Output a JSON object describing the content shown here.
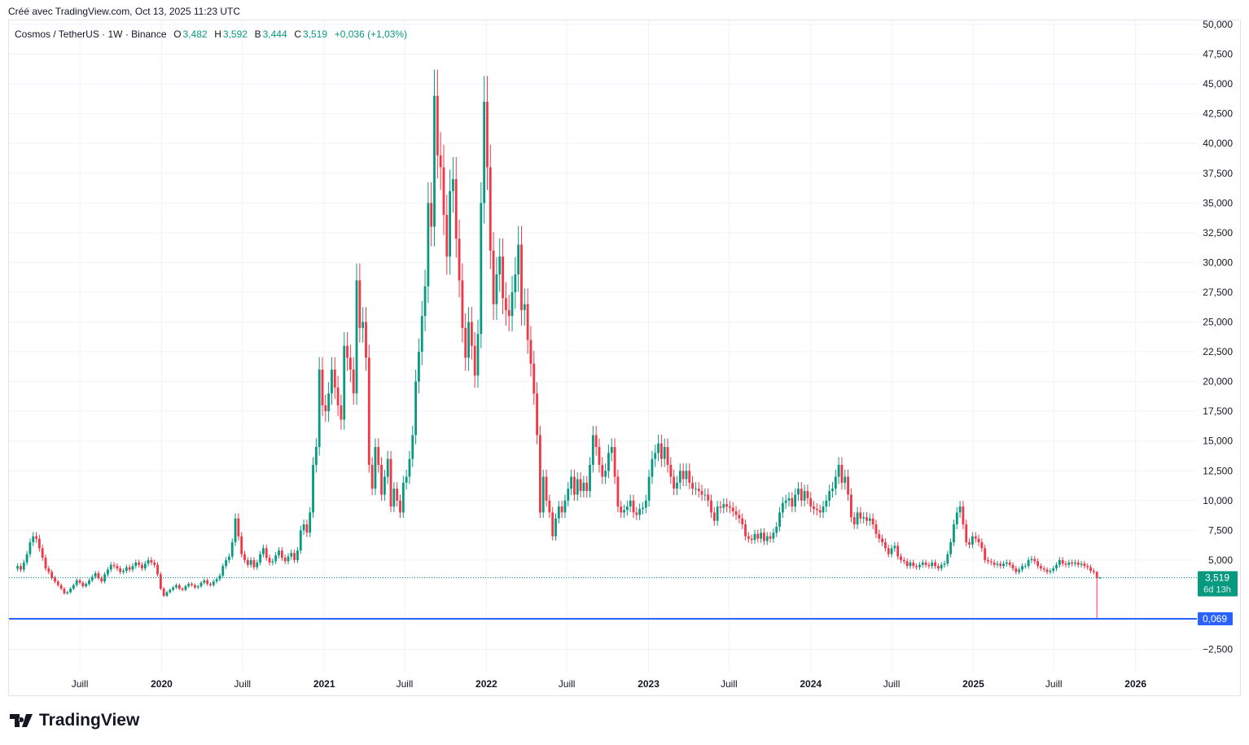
{
  "caption": "Créé avec TradingView.com, Oct 13, 2025 11:23 UTC",
  "legend": {
    "symbol": "Cosmos / TetherUS · 1W · Binance",
    "o_label": "O",
    "o": "3,482",
    "h_label": "H",
    "h": "3,592",
    "l_label": "B",
    "l": "3,444",
    "c_label": "C",
    "c": "3,519",
    "change": "+0,036 (+1,03%)"
  },
  "logo": "TradingView",
  "colors": {
    "up": "#089981",
    "down": "#f23645",
    "line": "#2962ff",
    "grid": "#f0f3fa",
    "text": "#131722"
  },
  "chart_data": {
    "type": "candlestick",
    "interval": "1W",
    "ylim": [
      -3.5,
      50.5
    ],
    "y_ticks": [
      50,
      47.5,
      45,
      42.5,
      40,
      37.5,
      35,
      32.5,
      30,
      27.5,
      25,
      22.5,
      20,
      17.5,
      15,
      12.5,
      10,
      7.5,
      5,
      -2.5
    ],
    "y_tick_labels": [
      "50,000",
      "47,500",
      "45,000",
      "42,500",
      "40,000",
      "37,500",
      "35,000",
      "32,500",
      "30,000",
      "27,500",
      "25,000",
      "22,500",
      "20,000",
      "17,500",
      "15,000",
      "12,500",
      "10,000",
      "7,500",
      "5,000",
      "−2,500"
    ],
    "x_tick_labels": [
      "Juill",
      "2020",
      "Juill",
      "2021",
      "Juill",
      "2022",
      "Juill",
      "2023",
      "Juill",
      "2024",
      "Juill",
      "2025",
      "Juill",
      "2026"
    ],
    "x_tick_dates": [
      "2019-07-01",
      "2020-01-01",
      "2020-07-01",
      "2021-01-01",
      "2021-07-01",
      "2022-01-01",
      "2022-07-01",
      "2023-01-01",
      "2023-07-01",
      "2024-01-01",
      "2024-07-01",
      "2025-01-01",
      "2025-07-01",
      "2026-01-01"
    ],
    "last_candle_date": "2025-10-13",
    "closes": [
      4.5,
      4.2,
      4.8,
      5.5,
      6.5,
      7.0,
      6.8,
      6.0,
      5.2,
      4.3,
      4.0,
      3.5,
      3.2,
      2.9,
      2.6,
      2.2,
      2.3,
      2.6,
      2.9,
      3.3,
      3.1,
      2.8,
      3.0,
      3.3,
      3.6,
      3.9,
      3.5,
      3.2,
      3.8,
      4.2,
      4.6,
      4.5,
      4.3,
      4.0,
      4.1,
      4.4,
      4.2,
      4.5,
      4.8,
      4.6,
      4.3,
      4.7,
      5.0,
      4.8,
      4.6,
      3.8,
      2.6,
      2.0,
      2.3,
      2.5,
      2.7,
      2.9,
      2.6,
      2.5,
      2.8,
      3.0,
      2.9,
      2.7,
      2.8,
      3.1,
      3.3,
      3.0,
      2.9,
      3.2,
      3.4,
      3.7,
      4.5,
      5.0,
      5.3,
      6.5,
      8.5,
      7.0,
      5.5,
      5.0,
      4.6,
      5.0,
      4.4,
      4.8,
      5.5,
      6.0,
      5.2,
      4.8,
      4.9,
      5.4,
      5.8,
      5.2,
      4.9,
      5.3,
      5.6,
      5.0,
      5.8,
      7.5,
      8.0,
      7.3,
      9.0,
      13.0,
      14.5,
      21.0,
      18.0,
      17.5,
      19.0,
      21.0,
      19.5,
      18.0,
      16.8,
      23.0,
      22.0,
      21.0,
      19.0,
      28.5,
      24.5,
      25.0,
      22.0,
      13.0,
      11.0,
      14.5,
      13.0,
      10.5,
      12.0,
      13.5,
      9.5,
      11.0,
      10.0,
      9.0,
      11.5,
      12.0,
      13.5,
      15.5,
      20.0,
      22.5,
      25.5,
      28.0,
      35.0,
      33.0,
      44.0,
      39.0,
      38.0,
      34.0,
      30.5,
      36.0,
      37.0,
      32.0,
      28.5,
      24.5,
      22.0,
      25.0,
      23.0,
      20.5,
      24.0,
      35.0,
      43.5,
      38.0,
      31.0,
      26.5,
      29.0,
      30.5,
      27.0,
      26.0,
      25.5,
      27.5,
      29.0,
      31.5,
      26.0,
      26.5,
      23.5,
      21.5,
      19.0,
      15.5,
      9.0,
      12.0,
      10.0,
      9.0,
      7.0,
      8.5,
      9.5,
      9.0,
      10.0,
      11.0,
      12.0,
      10.5,
      11.8,
      10.8,
      11.5,
      10.8,
      13.0,
      15.5,
      14.5,
      13.0,
      12.0,
      12.5,
      14.0,
      14.5,
      12.0,
      9.5,
      9.0,
      9.2,
      9.5,
      10.0,
      9.0,
      8.8,
      9.3,
      9.4,
      10.0,
      12.0,
      13.5,
      14.0,
      14.8,
      13.5,
      14.5,
      13.0,
      12.0,
      11.0,
      11.5,
      12.5,
      11.8,
      12.5,
      11.5,
      11.0,
      11.0,
      10.8,
      10.5,
      10.5,
      10.0,
      9.0,
      8.3,
      9.5,
      9.4,
      9.7,
      9.5,
      9.4,
      9.1,
      8.8,
      8.5,
      8.0,
      7.0,
      6.8,
      6.7,
      7.2,
      6.8,
      7.3,
      6.6,
      7.0,
      6.8,
      7.3,
      7.8,
      9.0,
      9.8,
      10.0,
      10.2,
      9.5,
      10.5,
      11.0,
      10.0,
      10.8,
      10.2,
      9.5,
      9.3,
      9.2,
      9.0,
      9.5,
      10.0,
      10.8,
      11.0,
      12.0,
      13.0,
      11.5,
      12.0,
      10.5,
      8.6,
      8.0,
      9.0,
      8.5,
      8.6,
      8.3,
      8.5,
      8.0,
      7.2,
      6.8,
      6.5,
      6.0,
      5.5,
      6.0,
      6.2,
      5.3,
      5.0,
      4.9,
      4.5,
      4.8,
      4.5,
      4.4,
      4.6,
      4.8,
      4.6,
      4.5,
      4.8,
      4.5,
      4.3,
      4.6,
      4.7,
      5.5,
      6.5,
      8.0,
      9.0,
      9.5,
      8.0,
      6.5,
      6.3,
      7.0,
      6.8,
      6.5,
      6.0,
      5.0,
      4.9,
      4.8,
      4.6,
      4.7,
      4.5,
      4.7,
      4.8,
      4.6,
      4.3,
      4.0,
      4.2,
      4.5,
      4.5,
      5.0,
      5.1,
      4.9,
      4.5,
      4.3,
      4.2,
      4.0,
      4.1,
      4.3,
      4.6,
      5.0,
      4.7,
      4.6,
      4.8,
      4.7,
      4.8,
      4.6,
      4.7,
      4.5,
      4.4,
      4.1,
      4.0,
      3.482,
      3.519
    ],
    "crash_candle_low": 0.069,
    "last_candle": {
      "open": 3.482,
      "high": 3.592,
      "low": 3.444,
      "close": 3.519
    },
    "current_price_label": "3,519",
    "countdown_label": "6d 13h",
    "horizontal_line": {
      "value": 0.069,
      "label": "0,069"
    }
  }
}
